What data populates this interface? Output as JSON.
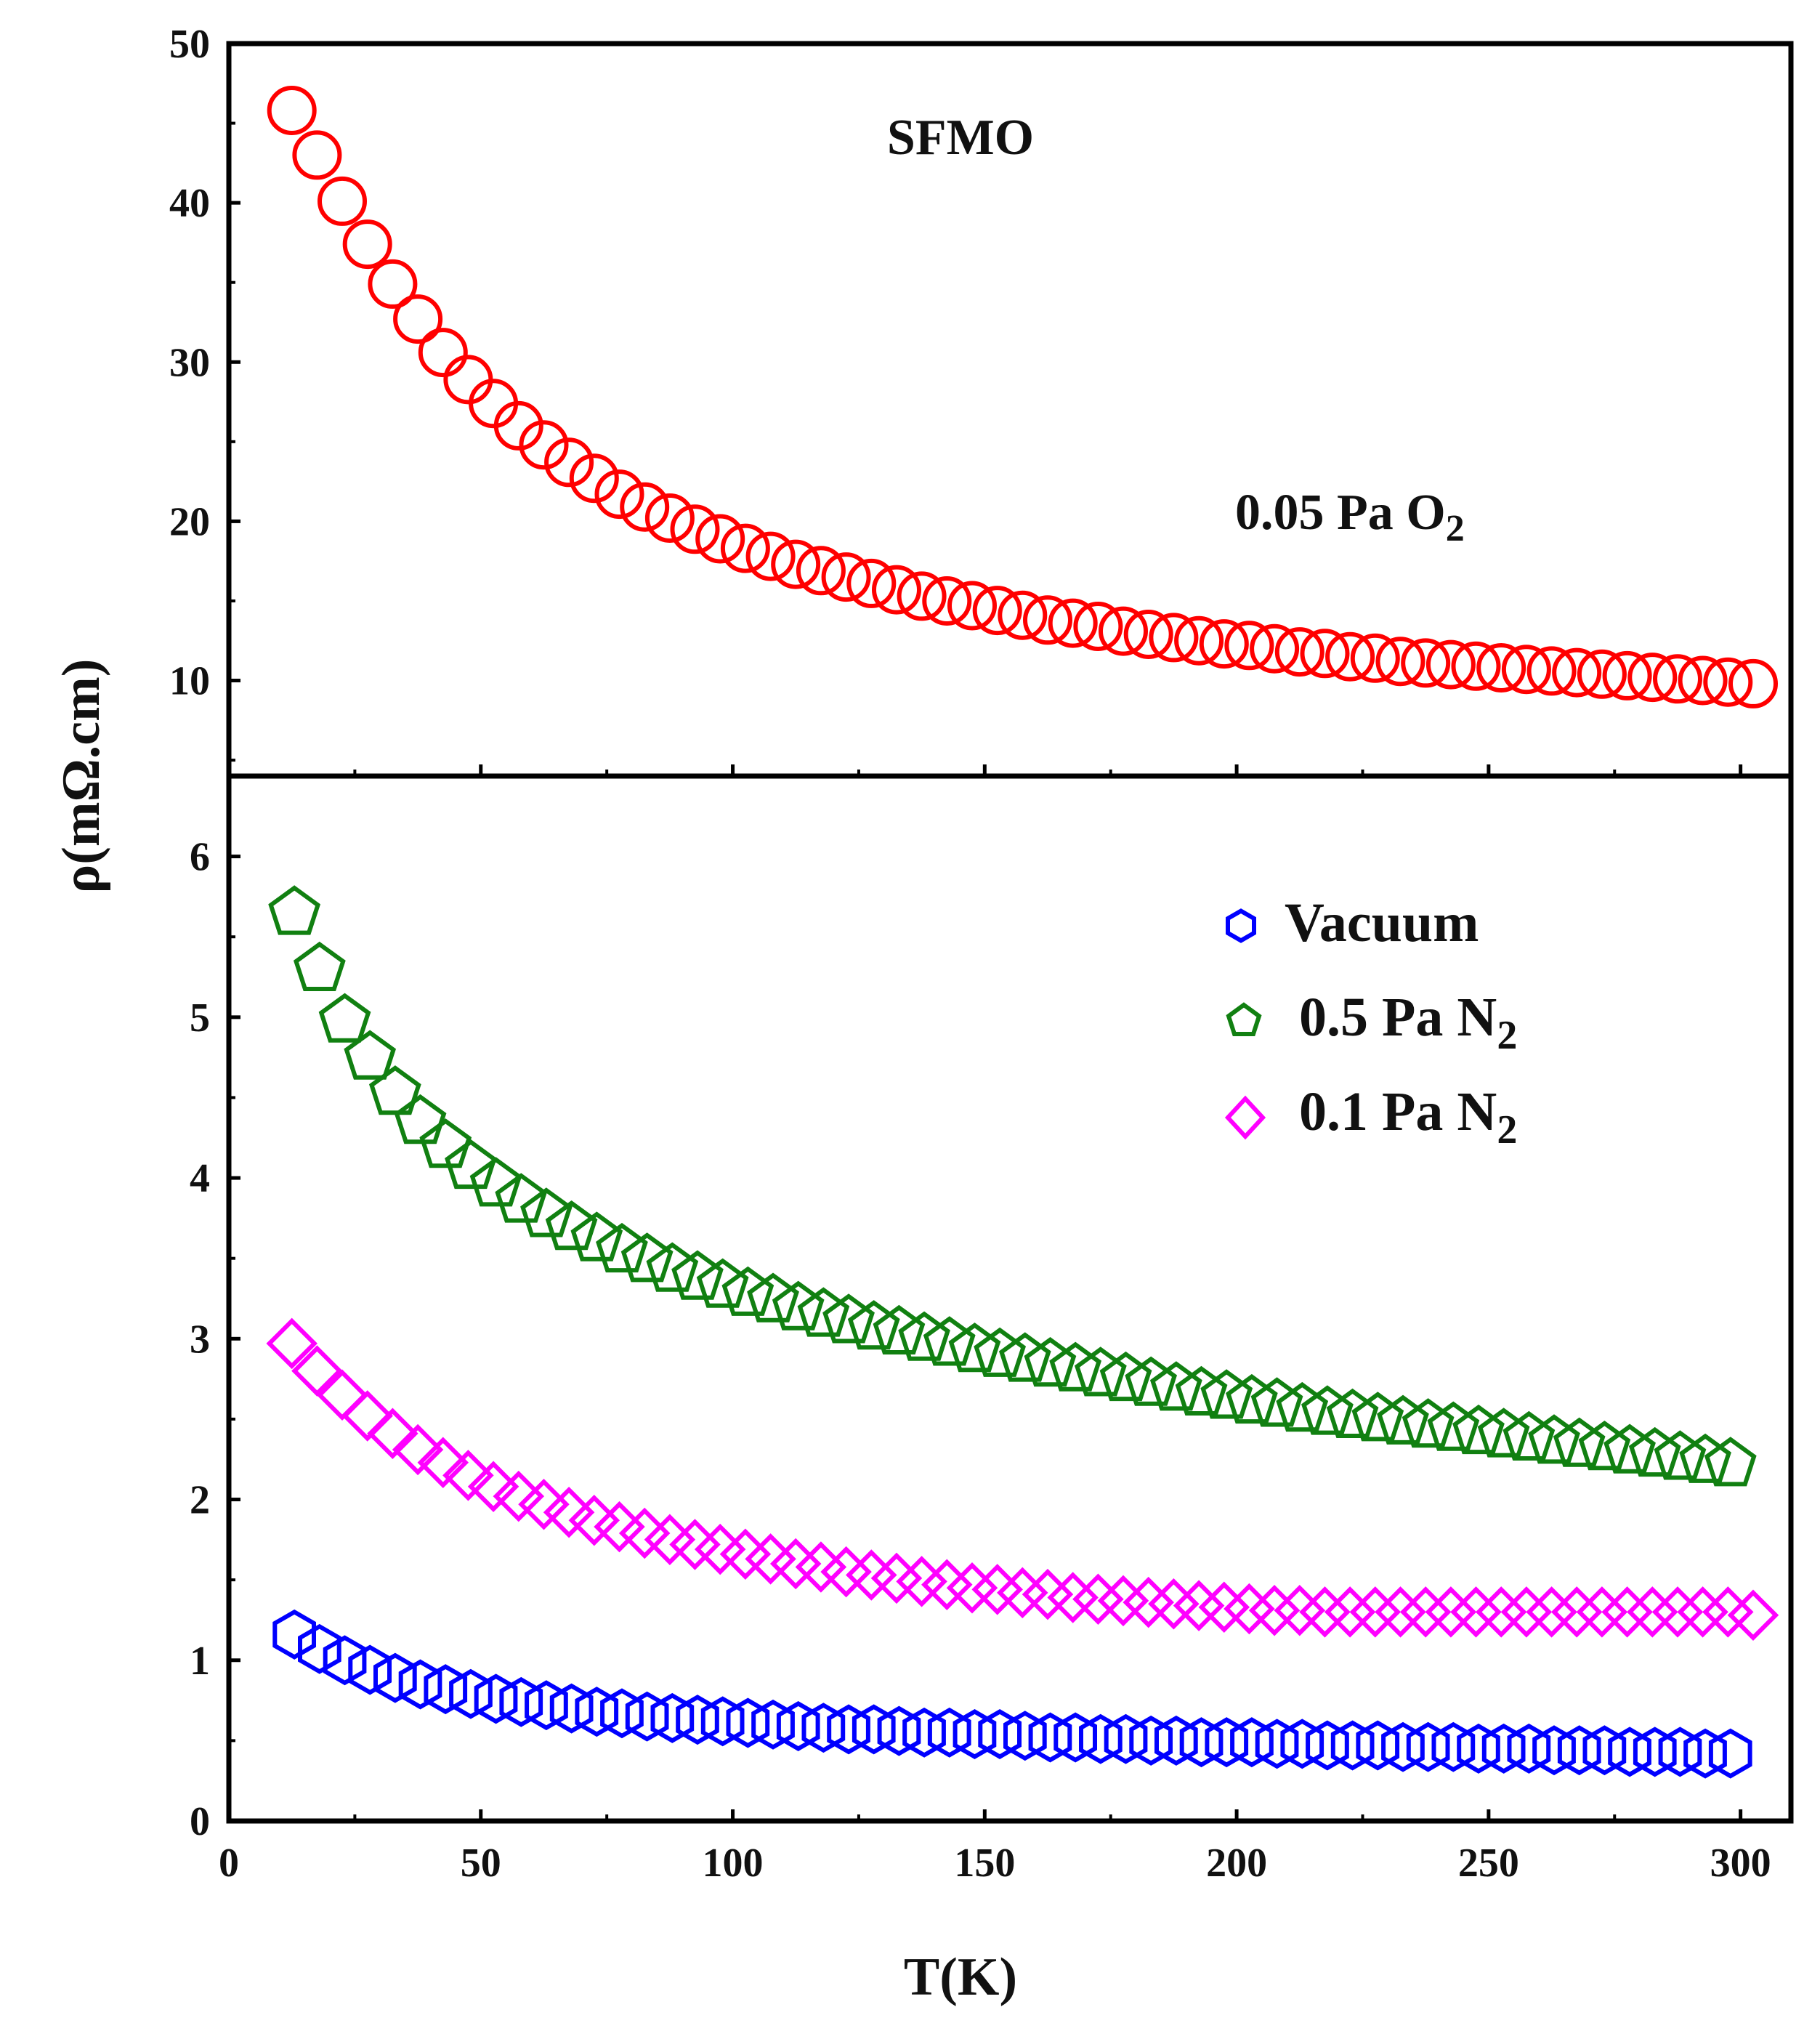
{
  "chart_data": [
    {
      "type": "scatter",
      "panel": "top",
      "title": "",
      "xlabel": "",
      "ylabel": "ρ(mΩ.cm)",
      "xlim": [
        0,
        310
      ],
      "ylim": [
        4,
        50
      ],
      "yticks": [
        10,
        20,
        30,
        40,
        50
      ],
      "annotations": [
        {
          "text": "SFMO"
        },
        {
          "text": "0.05 Pa O",
          "subscript": "2"
        }
      ],
      "series": [
        {
          "name": "0.05 Pa O2",
          "marker": "circle",
          "color": "#ff0000",
          "x": [
            12.5,
            17.5,
            22.5,
            27.5,
            32.5,
            37.5,
            42.5,
            47.5,
            52.5,
            57.5,
            62.5,
            67.5,
            72.5,
            77.5,
            82.5,
            87.5,
            92.5,
            97.5,
            102.5,
            107.5,
            112.5,
            117.5,
            122.5,
            127.5,
            132.5,
            137.5,
            142.5,
            147.5,
            152.5,
            157.5,
            162.5,
            167.5,
            172.5,
            177.5,
            182.5,
            187.5,
            192.5,
            197.5,
            202.5,
            207.5,
            212.5,
            217.5,
            222.5,
            227.5,
            232.5,
            237.5,
            242.5,
            247.5,
            252.5,
            257.5,
            262.5,
            267.5,
            272.5,
            277.5,
            282.5,
            287.5,
            292.5,
            297.5,
            302.5
          ],
          "y": [
            45.8,
            43.0,
            40.1,
            37.4,
            34.9,
            32.7,
            30.6,
            28.9,
            27.4,
            26.0,
            24.8,
            23.7,
            22.7,
            21.7,
            20.9,
            20.2,
            19.5,
            18.9,
            18.3,
            17.8,
            17.3,
            16.9,
            16.5,
            16.1,
            15.7,
            15.3,
            15.0,
            14.7,
            14.4,
            14.1,
            13.8,
            13.6,
            13.4,
            13.1,
            12.9,
            12.7,
            12.5,
            12.3,
            12.2,
            12.0,
            11.8,
            11.7,
            11.5,
            11.4,
            11.2,
            11.1,
            11.0,
            10.9,
            10.8,
            10.7,
            10.6,
            10.5,
            10.4,
            10.3,
            10.2,
            10.1,
            10.0,
            9.9,
            9.8
          ]
        }
      ]
    },
    {
      "type": "scatter",
      "panel": "bottom",
      "title": "",
      "xlabel": "T(K)",
      "ylabel": "ρ(mΩ.cm)",
      "xlim": [
        0,
        310
      ],
      "ylim": [
        0,
        6.5
      ],
      "xticks": [
        0,
        50,
        100,
        150,
        200,
        250,
        300
      ],
      "yticks": [
        0,
        1,
        2,
        3,
        4,
        5,
        6
      ],
      "legend": "top-right",
      "series": [
        {
          "name": "Vacuum",
          "label": "Vacuum",
          "marker": "hexagon",
          "color": "#0000ff",
          "x": [
            13,
            18,
            23,
            28,
            33,
            38,
            43,
            48,
            53,
            58,
            63,
            68,
            73,
            78,
            83,
            88,
            93,
            98,
            103,
            108,
            113,
            118,
            123,
            128,
            133,
            138,
            143,
            148,
            153,
            158,
            163,
            168,
            173,
            178,
            183,
            188,
            193,
            198,
            203,
            208,
            213,
            218,
            223,
            228,
            233,
            238,
            243,
            248,
            253,
            258,
            263,
            268,
            273,
            278,
            283,
            288,
            293,
            298
          ],
          "y": [
            1.16,
            1.07,
            1.0,
            0.94,
            0.89,
            0.85,
            0.82,
            0.79,
            0.76,
            0.74,
            0.72,
            0.7,
            0.68,
            0.67,
            0.65,
            0.64,
            0.63,
            0.62,
            0.61,
            0.6,
            0.59,
            0.58,
            0.57,
            0.57,
            0.56,
            0.55,
            0.55,
            0.54,
            0.54,
            0.53,
            0.52,
            0.52,
            0.51,
            0.51,
            0.5,
            0.5,
            0.49,
            0.49,
            0.49,
            0.48,
            0.48,
            0.47,
            0.47,
            0.47,
            0.46,
            0.46,
            0.46,
            0.45,
            0.45,
            0.45,
            0.44,
            0.44,
            0.44,
            0.43,
            0.43,
            0.43,
            0.42,
            0.42
          ]
        },
        {
          "name": "0.5 Pa N2",
          "label": "0.5 Pa N",
          "subscript": "2",
          "marker": "pentagon",
          "color": "#118011",
          "x": [
            13,
            18,
            23,
            28,
            33,
            38,
            43,
            48,
            53,
            58,
            63,
            68,
            73,
            78,
            83,
            88,
            93,
            98,
            103,
            108,
            113,
            118,
            123,
            128,
            133,
            138,
            143,
            148,
            153,
            158,
            163,
            168,
            173,
            178,
            183,
            188,
            193,
            198,
            203,
            208,
            213,
            218,
            223,
            228,
            233,
            238,
            243,
            248,
            253,
            258,
            263,
            268,
            273,
            278,
            283,
            288,
            293,
            298
          ],
          "y": [
            5.65,
            5.3,
            4.98,
            4.75,
            4.53,
            4.35,
            4.2,
            4.07,
            3.96,
            3.86,
            3.77,
            3.69,
            3.62,
            3.55,
            3.49,
            3.43,
            3.38,
            3.33,
            3.28,
            3.24,
            3.19,
            3.15,
            3.11,
            3.07,
            3.04,
            3.0,
            2.97,
            2.93,
            2.9,
            2.87,
            2.84,
            2.81,
            2.78,
            2.75,
            2.72,
            2.69,
            2.66,
            2.64,
            2.61,
            2.59,
            2.56,
            2.54,
            2.52,
            2.5,
            2.48,
            2.46,
            2.44,
            2.42,
            2.4,
            2.38,
            2.36,
            2.34,
            2.32,
            2.3,
            2.28,
            2.26,
            2.24,
            2.22
          ]
        },
        {
          "name": "0.1 Pa N2",
          "label": "0.1 Pa N",
          "subscript": "2",
          "marker": "diamond",
          "color": "#ff00ff",
          "x": [
            12.5,
            17.5,
            22.5,
            27.5,
            32.5,
            37.5,
            42.5,
            47.5,
            52.5,
            57.5,
            62.5,
            67.5,
            72.5,
            77.5,
            82.5,
            87.5,
            92.5,
            97.5,
            102.5,
            107.5,
            112.5,
            117.5,
            122.5,
            127.5,
            132.5,
            137.5,
            142.5,
            147.5,
            152.5,
            157.5,
            162.5,
            167.5,
            172.5,
            177.5,
            182.5,
            187.5,
            192.5,
            197.5,
            202.5,
            207.5,
            212.5,
            217.5,
            222.5,
            227.5,
            232.5,
            237.5,
            242.5,
            247.5,
            252.5,
            257.5,
            262.5,
            267.5,
            272.5,
            277.5,
            282.5,
            287.5,
            292.5,
            297.5,
            302.5
          ],
          "y": [
            2.97,
            2.8,
            2.65,
            2.52,
            2.41,
            2.31,
            2.23,
            2.15,
            2.08,
            2.02,
            1.97,
            1.92,
            1.87,
            1.83,
            1.79,
            1.75,
            1.72,
            1.69,
            1.66,
            1.63,
            1.6,
            1.58,
            1.55,
            1.53,
            1.51,
            1.49,
            1.47,
            1.45,
            1.44,
            1.42,
            1.41,
            1.39,
            1.38,
            1.37,
            1.36,
            1.35,
            1.34,
            1.33,
            1.32,
            1.31,
            1.31,
            1.3,
            1.3,
            1.3,
            1.3,
            1.3,
            1.3,
            1.3,
            1.3,
            1.3,
            1.3,
            1.3,
            1.3,
            1.3,
            1.3,
            1.3,
            1.3,
            1.3,
            1.28
          ]
        }
      ]
    }
  ]
}
